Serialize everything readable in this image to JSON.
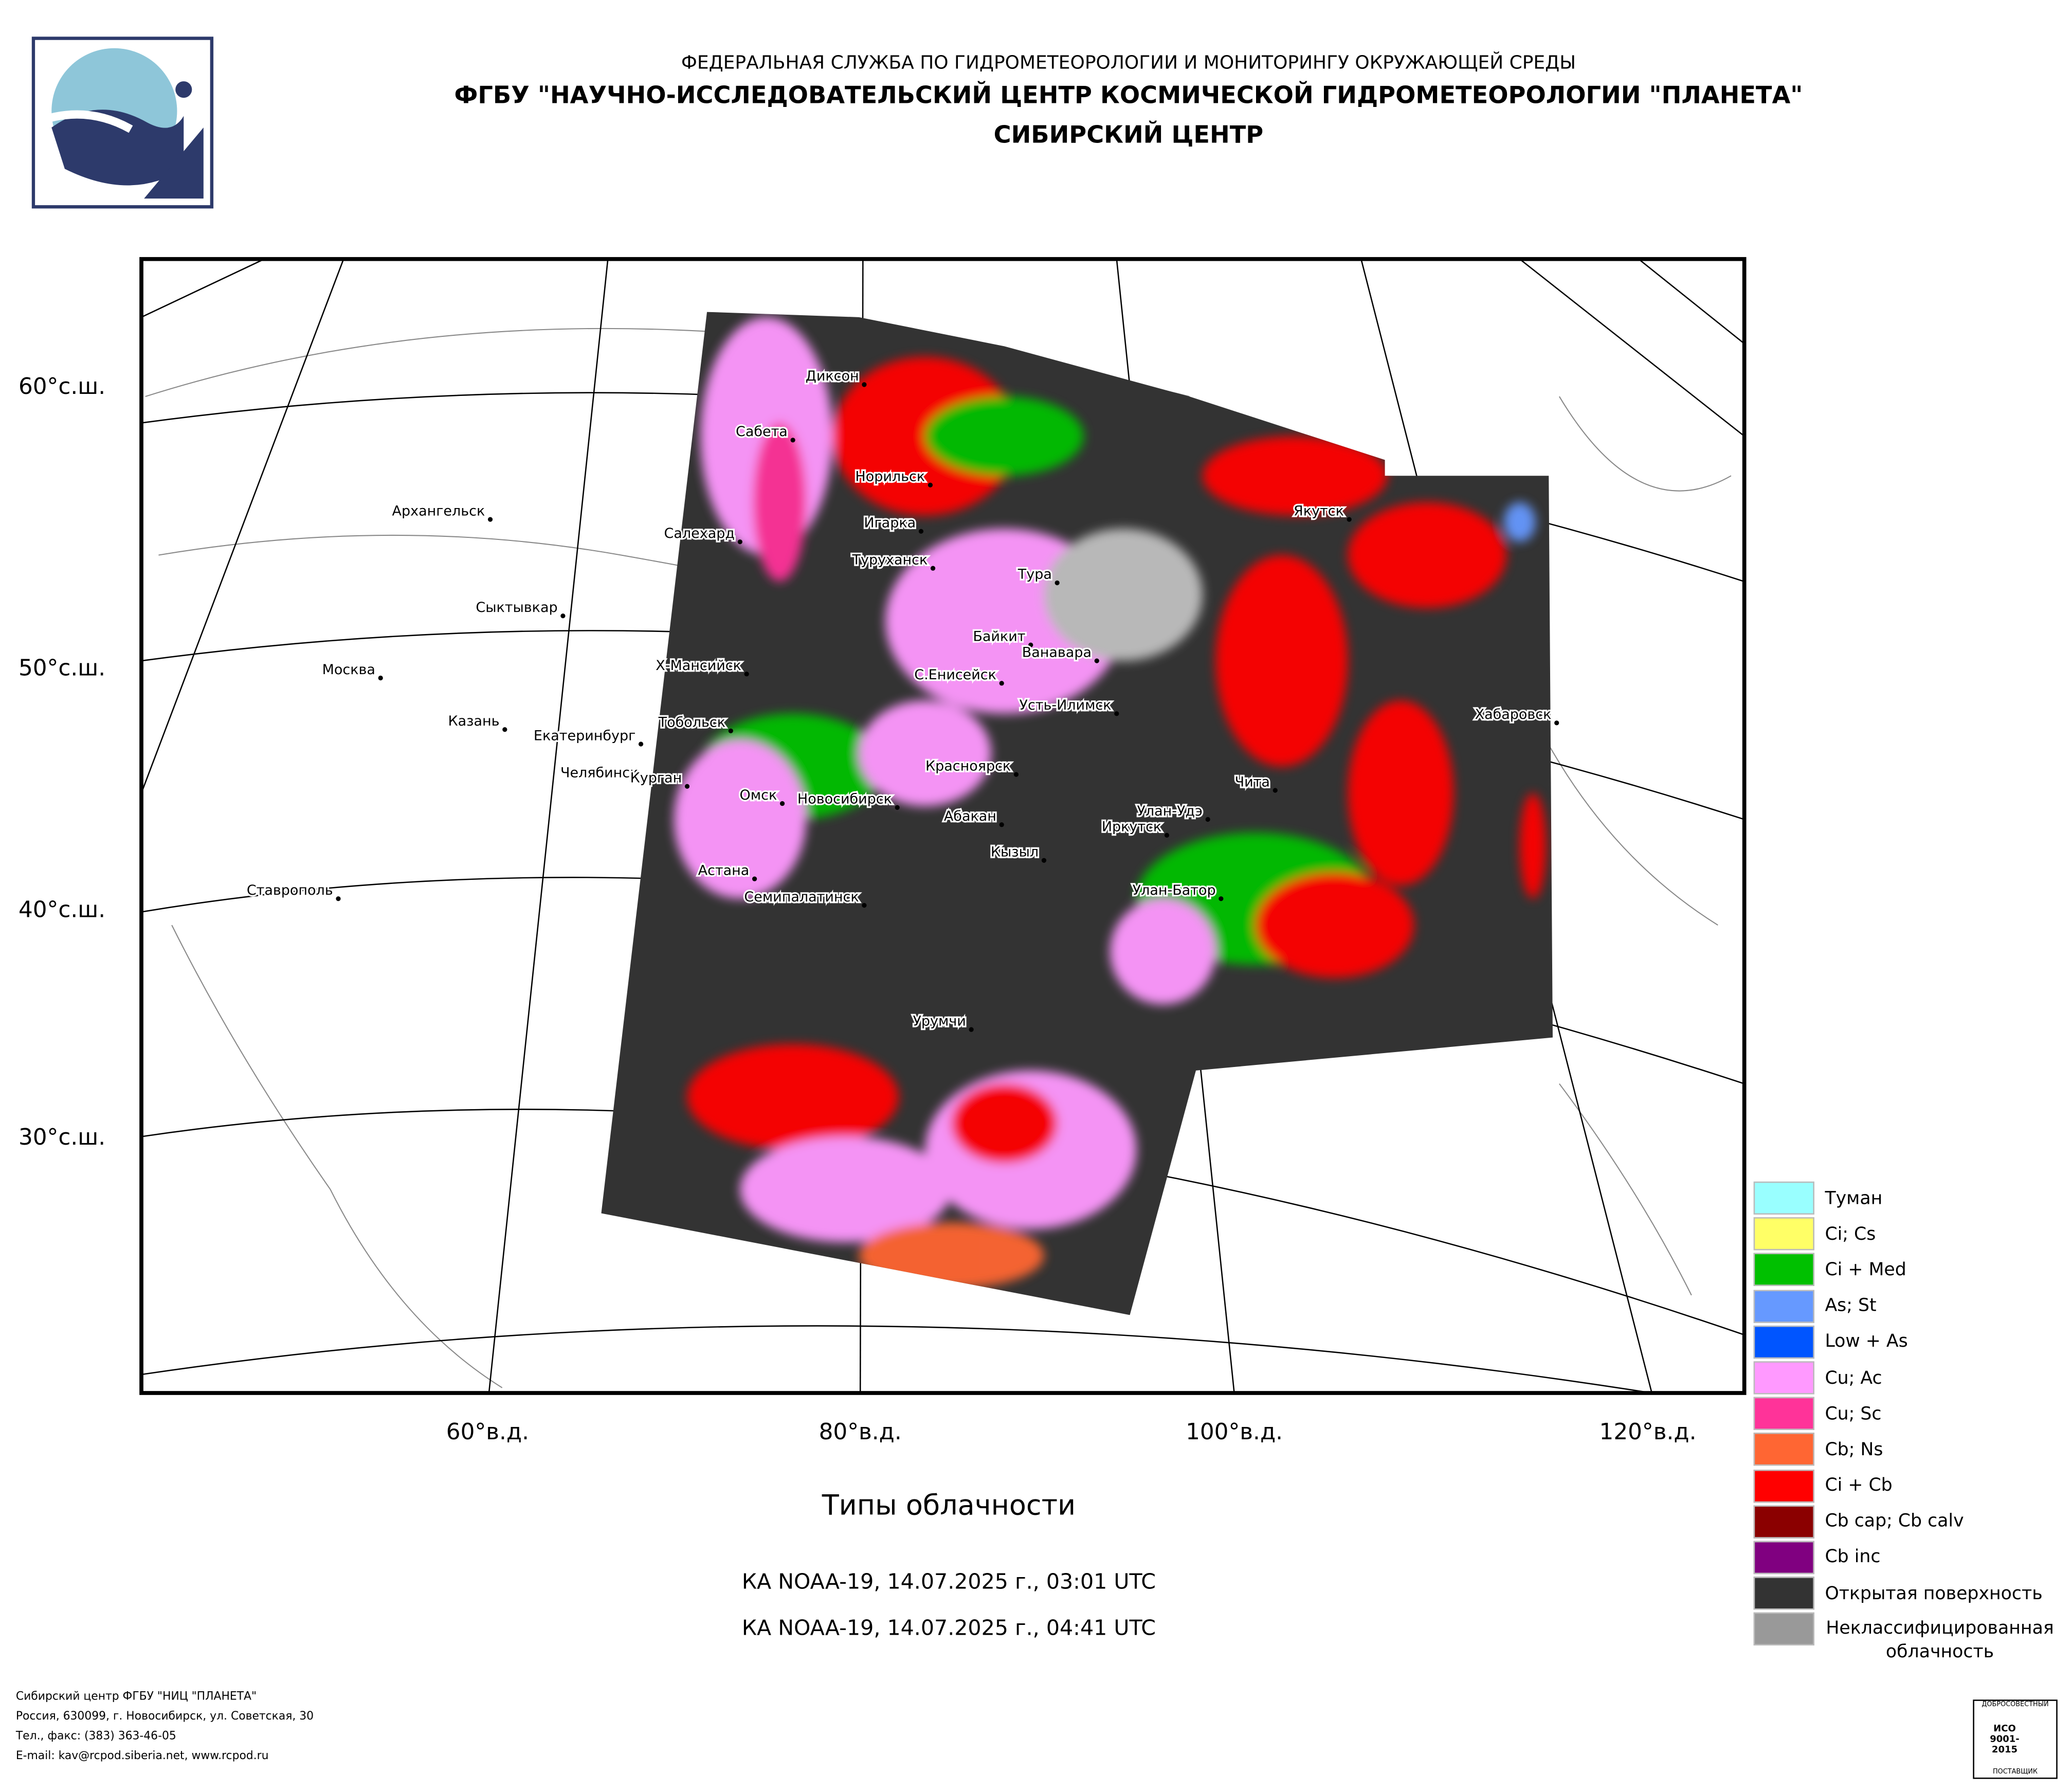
{
  "header": {
    "agency": "ФЕДЕРАЛЬНАЯ СЛУЖБА ПО ГИДРОМЕТЕОРОЛОГИИ И МОНИТОРИНГУ ОКРУЖАЮЩЕЙ СРЕДЫ",
    "center": "ФГБУ \"НАУЧНО-ИССЛЕДОВАТЕЛЬСКИЙ ЦЕНТР КОСМИЧЕСКОЙ ГИДРОМЕТЕОРОЛОГИИ \"ПЛАНЕТА\"",
    "branch": "СИБИРСКИЙ ЦЕНТР"
  },
  "map": {
    "lat_labels": [
      "60°с.ш.",
      "50°с.ш.",
      "40°с.ш.",
      "30°с.ш."
    ],
    "lon_labels": [
      "60°в.д.",
      "80°в.д.",
      "100°в.д.",
      "120°в.д."
    ],
    "cities": [
      "Диксон",
      "Сабета",
      "Норильск",
      "Архангельск",
      "Якутск",
      "Игарка",
      "Салехард",
      "Туруханск",
      "Тура",
      "Сыктывкар",
      "Байкит",
      "Ванавара",
      "Х-Мансийск",
      "Москва",
      "С.Енисейск",
      "Усть-Илимск",
      "Хабаровск",
      "Казань",
      "Тобольск",
      "Екатеринбург",
      "Челябинск",
      "Курган",
      "Красноярск",
      "Чита",
      "Омск",
      "Новосибирск",
      "Абакан",
      "Улан-Удэ",
      "Иркутск",
      "Кызыл",
      "Астана",
      "Семипалатинск",
      "Ставрополь",
      "Улан-Батор",
      "Урумчи"
    ]
  },
  "legend": [
    {
      "label": "Туман",
      "color": "#99ffff"
    },
    {
      "label": "Ci; Cs",
      "color": "#ffff66"
    },
    {
      "label": "Ci + Med",
      "color": "#00c000"
    },
    {
      "label": "As; St",
      "color": "#6699ff"
    },
    {
      "label": "Low + As",
      "color": "#0055ff"
    },
    {
      "label": "Cu; Ac",
      "color": "#ff99ff"
    },
    {
      "label": "Cu; Sc",
      "color": "#ff3399"
    },
    {
      "label": "Cb; Ns",
      "color": "#ff6633"
    },
    {
      "label": "Ci + Cb",
      "color": "#ff0000"
    },
    {
      "label": "Cb cap; Cb calv",
      "color": "#8b0000"
    },
    {
      "label": "Cb inc",
      "color": "#800080"
    },
    {
      "label": "Открытая поверхность",
      "color": "#333333"
    },
    {
      "label": "Неклассифицированная облачность",
      "color": "#999999"
    }
  ],
  "caption": {
    "title": "Типы облачности",
    "passes": [
      "КА NOAA-19, 14.07.2025 г., 03:01 UTC",
      "КА NOAA-19, 14.07.2025 г., 04:41 UTC"
    ]
  },
  "footer": [
    "Сибирский центр ФГБУ \"НИЦ \"ПЛАНЕТА\"",
    "Россия, 630099, г. Новосибирск, ул. Советская, 30",
    "Тел., факс: (383) 363-46-05",
    "E-mail: kav@rcpod.siberia.net, www.rcpod.ru"
  ],
  "badge": {
    "top": "ДОБРОСОВЕСТНЫЙ",
    "code": "ИСО 9001-2015",
    "bottom": "ПОСТАВЩИК"
  }
}
